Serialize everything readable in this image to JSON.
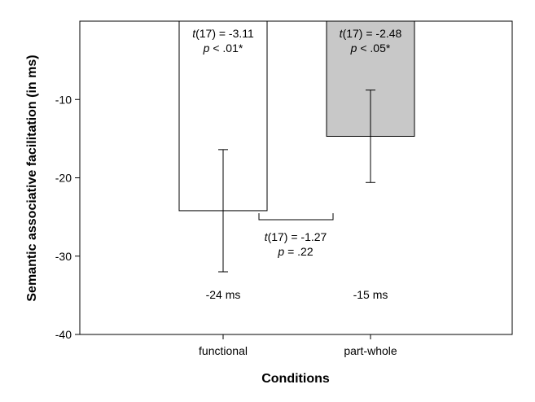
{
  "chart_data": {
    "type": "bar",
    "xlabel": "Conditions",
    "ylabel": "Semantic associative facilitation (in ms)",
    "ylim": [
      -40,
      0
    ],
    "yticks": [
      -40,
      -30,
      -20,
      -10
    ],
    "categories": [
      "functional",
      "part-whole"
    ],
    "values": [
      -24.2,
      -14.7
    ],
    "error_bars": [
      {
        "low": -32.0,
        "high": -16.4
      },
      {
        "low": -20.6,
        "high": -8.8
      }
    ],
    "bar_colors": [
      "#ffffff",
      "#c8c8c8"
    ],
    "value_labels": [
      "-24 ms",
      "-15 ms"
    ],
    "bar_stats": [
      {
        "t_var": "t",
        "t_rest": "(17) = -3.11",
        "p_var": "p",
        "p_rest": " < .01*"
      },
      {
        "t_var": "t",
        "t_rest": "(17) = -2.48",
        "p_var": "p",
        "p_rest": " < .05*"
      }
    ],
    "comparison": {
      "t_var": "t",
      "t_rest": "(17) = -1.27",
      "p_var": "p",
      "p_rest": " = .22"
    },
    "grid": false
  }
}
